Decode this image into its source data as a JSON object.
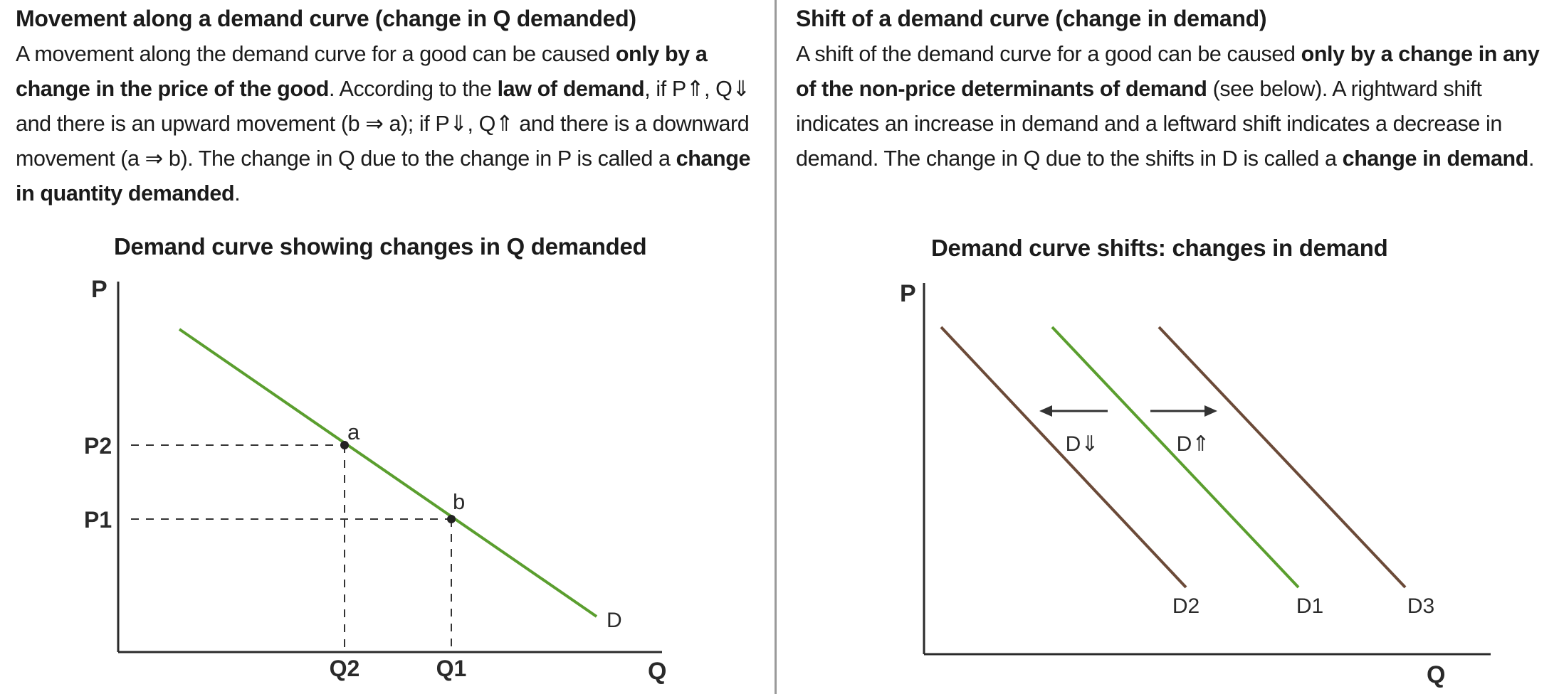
{
  "left": {
    "heading_pre": "Movement along a demand curve (change in Q demanded)",
    "paragraph": [
      {
        "t": "A movement along the demand curve for a good can be caused "
      },
      {
        "t": "only by a change in the price of the good",
        "b": true
      },
      {
        "t": ". According to the "
      },
      {
        "t": "law of demand",
        "b": true
      },
      {
        "t": ", if P⇑, Q⇓ and there is an upward movement (b ⇒ a); if P⇓, Q⇑ and there is a downward movement (a ⇒ b). The change in Q due to the change in P is called a "
      },
      {
        "t": "change in quantity demanded",
        "b": true
      },
      {
        "t": "."
      }
    ],
    "chart_title": "Demand curve showing changes in Q demanded"
  },
  "right": {
    "heading": "Shift of a demand curve (change in demand)",
    "paragraph": [
      {
        "t": "A shift of the demand curve for a good can be caused "
      },
      {
        "t": "only by a change in any of the non-price determinants of demand",
        "b": true
      },
      {
        "t": " (see below). A rightward shift indicates an increase in demand and a leftward shift indicates a decrease in demand. The change in Q due to the shifts in D is called a "
      },
      {
        "t": "change in demand",
        "b": true
      },
      {
        "t": "."
      }
    ],
    "chart_title": "Demand curve shifts: changes in demand"
  },
  "chart_data": [
    {
      "type": "line",
      "title": "Demand curve showing changes in Q demanded",
      "xlabel": "Q",
      "ylabel": "P",
      "series": [
        {
          "name": "D",
          "color": "#5a9e2e"
        }
      ],
      "points": [
        {
          "label": "a",
          "x_label": "Q2",
          "y_label": "P2"
        },
        {
          "label": "b",
          "x_label": "Q1",
          "y_label": "P1"
        }
      ],
      "x_ticks": [
        "Q2",
        "Q1"
      ],
      "y_ticks": [
        "P2",
        "P1"
      ]
    },
    {
      "type": "line",
      "title": "Demand curve shifts: changes in demand",
      "xlabel": "Q",
      "ylabel": "P",
      "series": [
        {
          "name": "D2",
          "color": "#6b4a38"
        },
        {
          "name": "D1",
          "color": "#5a9e2e"
        },
        {
          "name": "D3",
          "color": "#6b4a38"
        }
      ],
      "annotations": [
        "D⇓",
        "D⇑"
      ]
    }
  ]
}
